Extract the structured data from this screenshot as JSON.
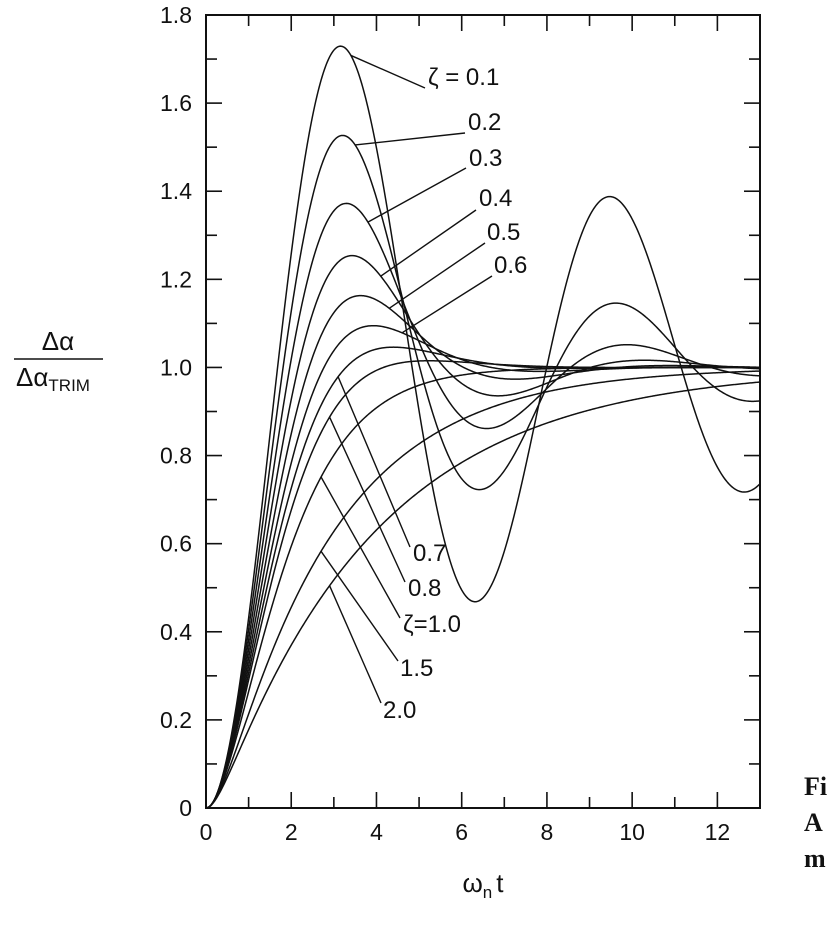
{
  "chart_data": {
    "type": "line",
    "title": "",
    "xlabel": {
      "main": "ω",
      "sub": "n",
      "tail": "t"
    },
    "ylabel": {
      "numerator": "Δα",
      "denominator": "Δα",
      "denominator_sub": "TRIM"
    },
    "xlim": [
      0,
      13
    ],
    "ylim": [
      0,
      1.8
    ],
    "xticks": [
      0,
      2,
      4,
      6,
      8,
      10,
      12
    ],
    "yticks": [
      0,
      0.2,
      0.4,
      0.6,
      0.8,
      1.0,
      1.2,
      1.4,
      1.6,
      1.8
    ],
    "xtick_labels": [
      "0",
      "2",
      "4",
      "6",
      "8",
      "10",
      "12"
    ],
    "ytick_labels": [
      "0",
      "0.2",
      "0.4",
      "0.6",
      "0.8",
      "1.0",
      "1.2",
      "1.4",
      "1.6",
      "1.8"
    ],
    "grid": false,
    "series": [
      {
        "name": "ζ = 0.1",
        "zeta": 0.1
      },
      {
        "name": "0.2",
        "zeta": 0.2
      },
      {
        "name": "0.3",
        "zeta": 0.3
      },
      {
        "name": "0.4",
        "zeta": 0.4
      },
      {
        "name": "0.5",
        "zeta": 0.5
      },
      {
        "name": "0.6",
        "zeta": 0.6
      },
      {
        "name": "0.7",
        "zeta": 0.7
      },
      {
        "name": "0.8",
        "zeta": 0.8
      },
      {
        "name": "ζ=1.0",
        "zeta": 1.0
      },
      {
        "name": "1.5",
        "zeta": 1.5
      },
      {
        "name": "2.0",
        "zeta": 2.0
      }
    ]
  },
  "side_note": [
    "Fi",
    "A",
    "m"
  ]
}
